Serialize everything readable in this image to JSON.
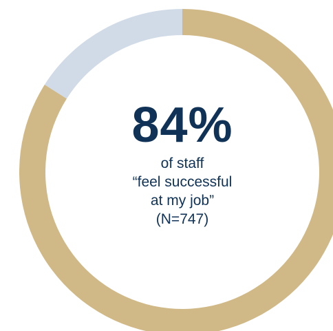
{
  "colors": {
    "primary": "#d0b986",
    "remainder": "#d0dbe7",
    "text": "#0f3256"
  },
  "center": {
    "value": "84%",
    "lines": [
      "of staff",
      "“feel successful",
      "at my job”",
      "(N=747)"
    ]
  },
  "chart_data": {
    "type": "pie",
    "style": "donut",
    "slices": [
      {
        "value": 84
      },
      {
        "value": 16
      }
    ],
    "total": 100
  }
}
